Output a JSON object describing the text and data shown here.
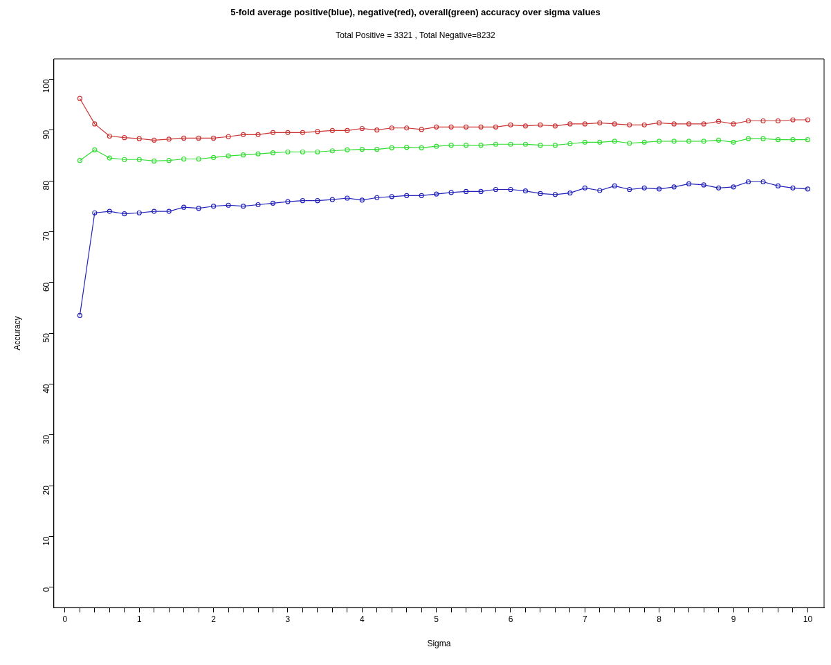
{
  "chart_data": {
    "type": "line",
    "title": "5-fold average positive(blue), negative(red), overall(green) accuracy over sigma values",
    "subtitle": "Total Positive = 3321 , Total Negative=8232",
    "xlabel": "Sigma",
    "ylabel": "Accuracy",
    "x": [
      0.2,
      0.4,
      0.6,
      0.8,
      1.0,
      1.2,
      1.4,
      1.6,
      1.8,
      2.0,
      2.2,
      2.4,
      2.6,
      2.8,
      3.0,
      3.2,
      3.4,
      3.6,
      3.8,
      4.0,
      4.2,
      4.4,
      4.6,
      4.8,
      5.0,
      5.2,
      5.4,
      5.6,
      5.8,
      6.0,
      6.2,
      6.4,
      6.6,
      6.8,
      7.0,
      7.2,
      7.4,
      7.6,
      7.8,
      8.0,
      8.2,
      8.4,
      8.6,
      8.8,
      9.0,
      9.2,
      9.4,
      9.6,
      9.8,
      10.0
    ],
    "series": [
      {
        "color": "#cc3333",
        "values": [
          96.2,
          91.2,
          88.8,
          88.5,
          88.3,
          88.0,
          88.2,
          88.4,
          88.4,
          88.4,
          88.7,
          89.1,
          89.1,
          89.5,
          89.5,
          89.5,
          89.7,
          89.9,
          89.9,
          90.3,
          90.0,
          90.4,
          90.4,
          90.1,
          90.6,
          90.6,
          90.6,
          90.6,
          90.6,
          91.0,
          90.8,
          91.0,
          90.8,
          91.2,
          91.2,
          91.4,
          91.2,
          91.0,
          91.0,
          91.4,
          91.2,
          91.2,
          91.2,
          91.7,
          91.2,
          91.8,
          91.8,
          91.8,
          92.0,
          92.0
        ]
      },
      {
        "color": "#33dd33",
        "values": [
          84.0,
          86.1,
          84.5,
          84.2,
          84.2,
          83.9,
          84.0,
          84.3,
          84.3,
          84.6,
          84.9,
          85.1,
          85.3,
          85.5,
          85.7,
          85.7,
          85.7,
          85.9,
          86.1,
          86.2,
          86.2,
          86.5,
          86.6,
          86.5,
          86.8,
          87.0,
          87.0,
          87.0,
          87.2,
          87.2,
          87.2,
          87.0,
          87.0,
          87.3,
          87.6,
          87.6,
          87.8,
          87.4,
          87.6,
          87.8,
          87.8,
          87.8,
          87.8,
          88.0,
          87.6,
          88.3,
          88.3,
          88.1,
          88.1,
          88.1
        ]
      },
      {
        "color": "#2222bb",
        "values": [
          53.5,
          73.7,
          74.0,
          73.5,
          73.7,
          74.0,
          74.0,
          74.8,
          74.6,
          75.0,
          75.2,
          75.0,
          75.3,
          75.6,
          75.9,
          76.1,
          76.1,
          76.3,
          76.6,
          76.2,
          76.7,
          76.9,
          77.1,
          77.1,
          77.4,
          77.7,
          77.9,
          77.9,
          78.3,
          78.3,
          78.0,
          77.5,
          77.3,
          77.6,
          78.6,
          78.1,
          79.0,
          78.3,
          78.6,
          78.4,
          78.8,
          79.4,
          79.2,
          78.6,
          78.8,
          79.8,
          79.8,
          79.0,
          78.6,
          78.4
        ]
      }
    ],
    "xlim": [
      -0.15,
      10.22
    ],
    "xticks": [
      0,
      {
        "value": 0.2,
        "label": null
      },
      {
        "value": 0.4,
        "label": null
      },
      {
        "value": 0.6,
        "label": null
      },
      {
        "value": 0.8,
        "label": null
      },
      1,
      {
        "value": 1.2,
        "label": null
      },
      {
        "value": 1.4,
        "label": null
      },
      {
        "value": 1.6,
        "label": null
      },
      {
        "value": 1.8,
        "label": null
      },
      2,
      {
        "value": 2.2,
        "label": null
      },
      {
        "value": 2.4,
        "label": null
      },
      {
        "value": 2.6,
        "label": null
      },
      {
        "value": 2.8,
        "label": null
      },
      3,
      {
        "value": 3.2,
        "label": null
      },
      {
        "value": 3.4,
        "label": null
      },
      {
        "value": 3.6,
        "label": null
      },
      {
        "value": 3.8,
        "label": null
      },
      4,
      {
        "value": 4.2,
        "label": null
      },
      {
        "value": 4.4,
        "label": null
      },
      {
        "value": 4.6,
        "label": null
      },
      {
        "value": 4.8,
        "label": null
      },
      5,
      {
        "value": 5.2,
        "label": null
      },
      {
        "value": 5.4,
        "label": null
      },
      {
        "value": 5.6,
        "label": null
      },
      {
        "value": 5.8,
        "label": null
      },
      6,
      {
        "value": 6.2,
        "label": null
      },
      {
        "value": 6.4,
        "label": null
      },
      {
        "value": 6.6,
        "label": null
      },
      {
        "value": 6.8,
        "label": null
      },
      7,
      {
        "value": 7.2,
        "label": null
      },
      {
        "value": 7.4,
        "label": null
      },
      {
        "value": 7.6,
        "label": null
      },
      {
        "value": 7.8,
        "label": null
      },
      8,
      {
        "value": 8.2,
        "label": null
      },
      {
        "value": 8.4,
        "label": null
      },
      {
        "value": 8.6,
        "label": null
      },
      {
        "value": 8.8,
        "label": null
      },
      9,
      {
        "value": 9.2,
        "label": null
      },
      {
        "value": 9.4,
        "label": null
      },
      {
        "value": 9.6,
        "label": null
      },
      {
        "value": 9.8,
        "label": null
      },
      10
    ],
    "ylim": [
      -4,
      104
    ],
    "yticks": [
      0,
      10,
      20,
      30,
      40,
      50,
      60,
      70,
      80,
      90,
      100
    ],
    "grid": false,
    "legend": false,
    "marker": "circle",
    "line_style": "solid"
  }
}
